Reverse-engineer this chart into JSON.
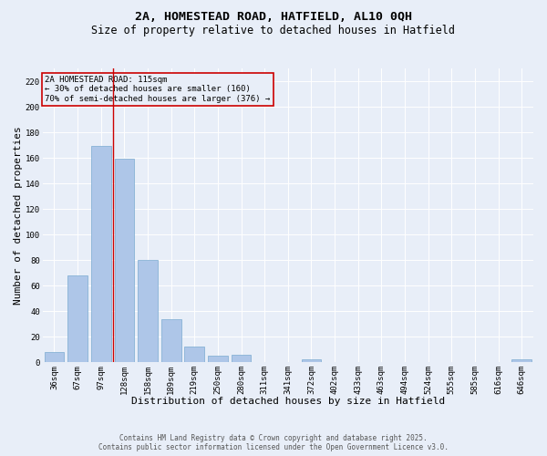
{
  "title": "2A, HOMESTEAD ROAD, HATFIELD, AL10 0QH",
  "subtitle": "Size of property relative to detached houses in Hatfield",
  "xlabel": "Distribution of detached houses by size in Hatfield",
  "ylabel": "Number of detached properties",
  "categories": [
    "36sqm",
    "67sqm",
    "97sqm",
    "128sqm",
    "158sqm",
    "189sqm",
    "219sqm",
    "250sqm",
    "280sqm",
    "311sqm",
    "341sqm",
    "372sqm",
    "402sqm",
    "433sqm",
    "463sqm",
    "494sqm",
    "524sqm",
    "555sqm",
    "585sqm",
    "616sqm",
    "646sqm"
  ],
  "values": [
    8,
    68,
    169,
    159,
    80,
    34,
    12,
    5,
    6,
    0,
    0,
    2,
    0,
    0,
    0,
    0,
    0,
    0,
    0,
    0,
    2
  ],
  "bar_color": "#aec6e8",
  "bar_edge_color": "#7aaad0",
  "bg_color": "#e8eef8",
  "grid_color": "#ffffff",
  "vline_x": 2.5,
  "vline_color": "#cc0000",
  "annotation_text": "2A HOMESTEAD ROAD: 115sqm\n← 30% of detached houses are smaller (160)\n70% of semi-detached houses are larger (376) →",
  "annotation_box_color": "#cc0000",
  "ylim": [
    0,
    230
  ],
  "yticks": [
    0,
    20,
    40,
    60,
    80,
    100,
    120,
    140,
    160,
    180,
    200,
    220
  ],
  "footer": "Contains HM Land Registry data © Crown copyright and database right 2025.\nContains public sector information licensed under the Open Government Licence v3.0.",
  "title_fontsize": 9.5,
  "subtitle_fontsize": 8.5,
  "xlabel_fontsize": 8,
  "ylabel_fontsize": 8,
  "tick_fontsize": 6.5,
  "annotation_fontsize": 6.5,
  "footer_fontsize": 5.5
}
